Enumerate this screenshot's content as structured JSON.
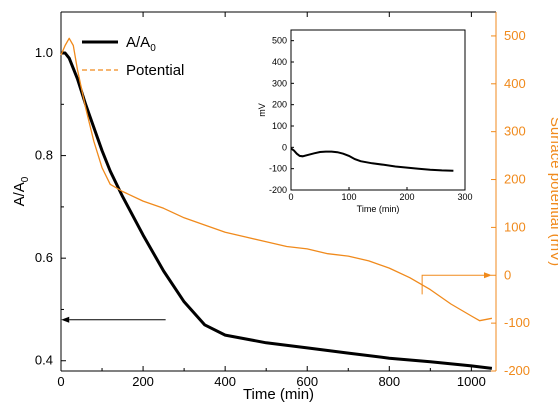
{
  "chart_data": [
    {
      "type": "line",
      "xlabel": "Time (min)",
      "ylabel_left": "A/A",
      "ylabel_left_subscript": "0",
      "ylabel_right": "Surface potential (mV)",
      "xlim": [
        0,
        1060
      ],
      "ylim_left": [
        0.38,
        1.08
      ],
      "ylim_right": [
        -200,
        550
      ],
      "x_ticks": [
        0,
        200,
        400,
        600,
        800,
        1000
      ],
      "y_left_ticks": [
        0.4,
        0.6,
        0.8,
        1.0
      ],
      "y_left_tick_labels": [
        "0.4",
        "0.6",
        "0.8",
        "1.0"
      ],
      "y_right_ticks": [
        -200,
        -100,
        0,
        100,
        200,
        300,
        400,
        500
      ],
      "legend": {
        "placement": "top-left",
        "entries": [
          {
            "label": "A/A",
            "subscript": "0",
            "style": "solid",
            "color": "#000000"
          },
          {
            "label": "Potential",
            "style": "dashed",
            "color": "#f08a1c"
          }
        ]
      },
      "series": [
        {
          "name": "A/A0",
          "axis": "left",
          "color": "#000000",
          "x": [
            0,
            10,
            20,
            40,
            60,
            80,
            100,
            120,
            150,
            200,
            250,
            300,
            350,
            400,
            500,
            600,
            700,
            800,
            900,
            1000,
            1050
          ],
          "y": [
            1.0,
            1.0,
            0.99,
            0.95,
            0.9,
            0.855,
            0.81,
            0.77,
            0.72,
            0.645,
            0.575,
            0.515,
            0.47,
            0.45,
            0.435,
            0.425,
            0.415,
            0.405,
            0.398,
            0.39,
            0.385
          ]
        },
        {
          "name": "Potential",
          "axis": "right",
          "color": "#f08a1c",
          "x": [
            0,
            10,
            20,
            30,
            40,
            60,
            80,
            100,
            120,
            150,
            200,
            250,
            300,
            350,
            400,
            450,
            500,
            550,
            600,
            650,
            700,
            750,
            800,
            850,
            900,
            950,
            1000,
            1020,
            1050
          ],
          "y": [
            460,
            480,
            495,
            480,
            430,
            350,
            280,
            225,
            190,
            175,
            155,
            140,
            120,
            105,
            90,
            80,
            70,
            60,
            55,
            45,
            40,
            30,
            15,
            -5,
            -30,
            -60,
            -85,
            -95,
            -90
          ]
        }
      ],
      "annotations": [
        {
          "type": "arrow",
          "direction": "left",
          "points_to": "left axis",
          "color": "#000000"
        },
        {
          "type": "arrow",
          "direction": "right",
          "points_to": "right axis",
          "color": "#f08a1c"
        }
      ]
    },
    {
      "type": "line",
      "position": "inset",
      "xlabel": "Time (min)",
      "ylabel": "mV",
      "xlim": [
        0,
        300
      ],
      "ylim": [
        -200,
        550
      ],
      "x_ticks": [
        0,
        100,
        200,
        300
      ],
      "y_ticks": [
        -200,
        -100,
        0,
        100,
        200,
        300,
        400,
        500
      ],
      "series": [
        {
          "color": "#000000",
          "x": [
            0,
            5,
            10,
            15,
            20,
            30,
            40,
            50,
            60,
            70,
            80,
            90,
            100,
            110,
            120,
            140,
            160,
            180,
            200,
            220,
            240,
            260,
            280
          ],
          "y": [
            -5,
            -15,
            -30,
            -40,
            -42,
            -35,
            -28,
            -22,
            -20,
            -20,
            -23,
            -30,
            -40,
            -55,
            -65,
            -75,
            -82,
            -90,
            -95,
            -100,
            -105,
            -108,
            -110
          ]
        }
      ]
    }
  ]
}
